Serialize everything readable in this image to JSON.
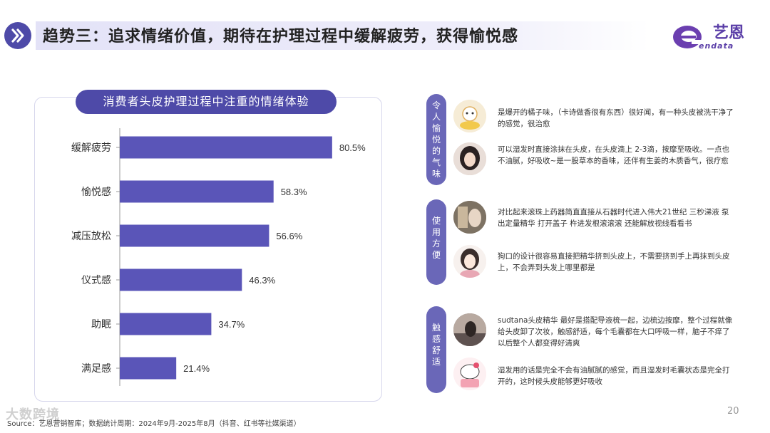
{
  "header": {
    "title": "趋势三：追求情绪价值，期待在护理过程中缓解疲劳，获得愉悦感",
    "logo_text": "艺恩",
    "logo_sub": "endata"
  },
  "chart_data": {
    "type": "bar",
    "orientation": "horizontal",
    "title": "消费者头皮护理过程中注重的情绪体验",
    "categories": [
      "缓解疲劳",
      "愉悦感",
      "减压放松",
      "仪式感",
      "助眠",
      "满足感"
    ],
    "values": [
      80.5,
      58.3,
      56.6,
      46.3,
      34.7,
      21.4
    ],
    "value_labels": [
      "80.5%",
      "58.3%",
      "56.6%",
      "46.3%",
      "34.7%",
      "21.4%"
    ],
    "xlim": [
      0,
      100
    ],
    "bar_color": "#5a55b8",
    "grid": false
  },
  "sections": [
    {
      "tag": "令人愉悦的气味",
      "comments": [
        {
          "avatar": "cartoon-avatar",
          "text": "是爆开的橘子味，（卡诗做香很有东西）很好闻，有一种头皮被洗干净了的感觉，很治愈"
        },
        {
          "avatar": "user-photo-avatar",
          "text": "可以湿发时直接涂抹在头皮，在头皮滴上 2-3滴，按摩至吸收。一点也不油腻，好吸收~是一股草本的香味，还伴有生姜的木质香气，很疗愈"
        }
      ]
    },
    {
      "tag": "使用方便",
      "comments": [
        {
          "avatar": "user-photo-avatar",
          "text": "对比起来滚珠上药器简直直接从石器时代进入伟大21世纪 三秒涕液 泵出定量精华 打开盖子 杵进发根滚滚滚 还能解放视线看看书"
        },
        {
          "avatar": "illustration-avatar",
          "text": "狗口的设计很容易直接把精华挤到头皮上，不需要挤到手上再抹到头皮上，不会弄到头发上哪里都是"
        }
      ]
    },
    {
      "tag": "触感舒适",
      "comments": [
        {
          "avatar": "user-photo-avatar",
          "text": "sudtana头皮精华 最好是搭配导液梳一起，边梳边按摩，整个过程就像给头皮卸了次妆，触感舒适，每个毛囊都在大口呼吸一样，脑子不痒了以后整个人都变得好清爽"
        },
        {
          "avatar": "hello-kitty-avatar",
          "text": "湿发用的话是完全不会有油腻腻的感觉，而且湿发时毛囊状态是完全打开的，这时候头皮能够更好吸收"
        }
      ]
    }
  ],
  "footer": {
    "page_number": "20",
    "source": "Source：艺恩营销智库；数据统计周期：2024年9月-2025年8月（抖音、红书等社媒渠道）",
    "watermark": "大数跨境"
  }
}
